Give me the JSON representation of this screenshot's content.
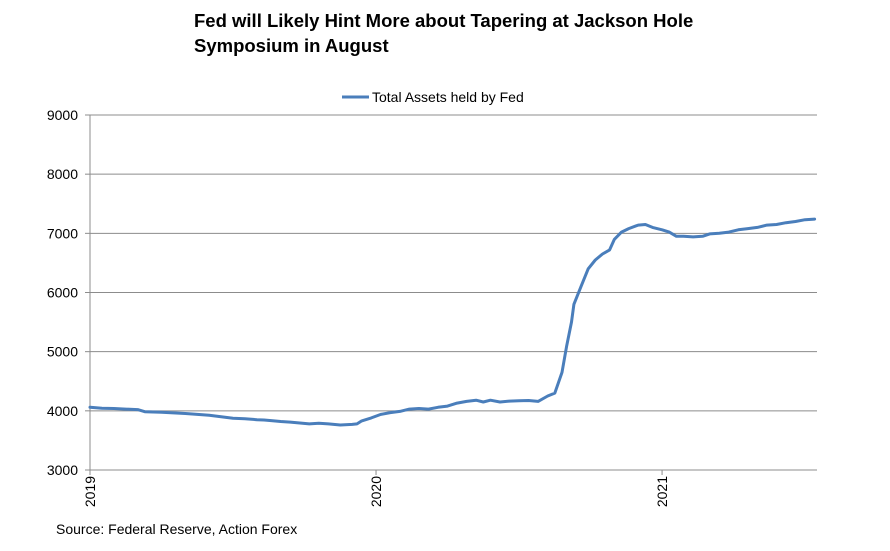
{
  "chart_data": {
    "type": "line",
    "title_lines": [
      "Fed will Likely Hint More about Tapering at Jackson Hole",
      "Symposium in August"
    ],
    "xlabel": "",
    "ylabel": "",
    "ylim": [
      3000,
      9000
    ],
    "yticks": [
      3000,
      4000,
      5000,
      6000,
      7000,
      8000,
      9000
    ],
    "x_unit": "months since Jan 2019",
    "xlim": [
      0,
      30.5
    ],
    "xticks": [
      {
        "label": "2019",
        "x": 0
      },
      {
        "label": "2020",
        "x": 12
      },
      {
        "label": "2021",
        "x": 24
      }
    ],
    "grid": true,
    "legend_position": "top-center",
    "series": [
      {
        "name": "Total Assets held by Fed",
        "color": "#4a7ebb",
        "points": [
          [
            0.0,
            4060
          ],
          [
            0.5,
            4045
          ],
          [
            1.0,
            4040
          ],
          [
            1.5,
            4030
          ],
          [
            2.0,
            4020
          ],
          [
            2.3,
            3985
          ],
          [
            3.0,
            3975
          ],
          [
            3.5,
            3965
          ],
          [
            4.0,
            3955
          ],
          [
            4.5,
            3940
          ],
          [
            5.0,
            3925
          ],
          [
            5.5,
            3900
          ],
          [
            6.0,
            3875
          ],
          [
            6.5,
            3865
          ],
          [
            7.0,
            3850
          ],
          [
            7.3,
            3845
          ],
          [
            7.6,
            3835
          ],
          [
            8.0,
            3820
          ],
          [
            8.4,
            3810
          ],
          [
            8.8,
            3795
          ],
          [
            9.2,
            3780
          ],
          [
            9.6,
            3790
          ],
          [
            10.0,
            3780
          ],
          [
            10.5,
            3760
          ],
          [
            11.0,
            3770
          ],
          [
            11.2,
            3780
          ],
          [
            11.4,
            3830
          ],
          [
            11.8,
            3880
          ],
          [
            12.2,
            3940
          ],
          [
            12.6,
            3970
          ],
          [
            13.0,
            3990
          ],
          [
            13.4,
            4030
          ],
          [
            13.8,
            4040
          ],
          [
            14.2,
            4030
          ],
          [
            14.6,
            4060
          ],
          [
            15.0,
            4080
          ],
          [
            15.4,
            4130
          ],
          [
            15.8,
            4160
          ],
          [
            16.2,
            4180
          ],
          [
            16.5,
            4150
          ],
          [
            16.8,
            4180
          ],
          [
            17.2,
            4150
          ],
          [
            17.6,
            4165
          ],
          [
            18.0,
            4170
          ],
          [
            18.4,
            4175
          ],
          [
            18.8,
            4160
          ],
          [
            19.2,
            4250
          ],
          [
            19.5,
            4300
          ],
          [
            19.8,
            4650
          ],
          [
            20.0,
            5100
          ],
          [
            20.2,
            5500
          ],
          [
            20.3,
            5800
          ],
          [
            20.6,
            6100
          ],
          [
            20.9,
            6400
          ],
          [
            21.2,
            6550
          ],
          [
            21.5,
            6650
          ],
          [
            21.8,
            6720
          ],
          [
            22.0,
            6900
          ],
          [
            22.3,
            7020
          ],
          [
            22.6,
            7080
          ],
          [
            23.0,
            7140
          ],
          [
            23.3,
            7150
          ],
          [
            23.6,
            7100
          ],
          [
            24.0,
            7060
          ],
          [
            24.3,
            7020
          ],
          [
            24.6,
            6950
          ],
          [
            24.9,
            6950
          ],
          [
            25.3,
            6940
          ],
          [
            25.7,
            6950
          ],
          [
            26.0,
            6990
          ],
          [
            26.4,
            7000
          ],
          [
            26.8,
            7020
          ],
          [
            27.2,
            7060
          ],
          [
            27.6,
            7080
          ],
          [
            28.0,
            7100
          ],
          [
            28.4,
            7140
          ],
          [
            28.8,
            7150
          ],
          [
            29.2,
            7180
          ],
          [
            29.6,
            7200
          ],
          [
            30.0,
            7230
          ],
          [
            30.4,
            7240
          ]
        ]
      }
    ]
  },
  "source": "Source: Federal Reserve, Action Forex"
}
